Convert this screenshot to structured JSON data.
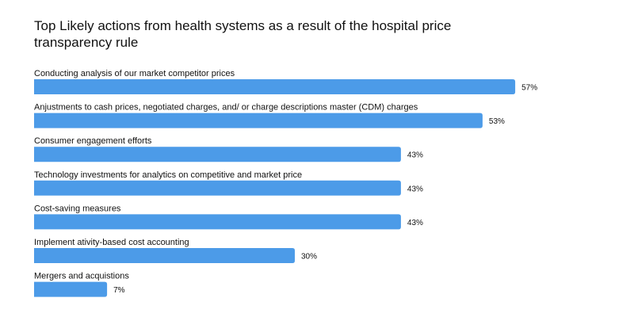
{
  "chart_data": {
    "type": "bar",
    "orientation": "horizontal",
    "title": "Top Likely actions from health systems as a result of the hospital price transparency rule",
    "categories": [
      "Conducting analysis of our market competitor prices",
      "Anjustments to cash prices, negotiated charges, and/ or charge descriptions master (CDM) charges",
      "Consumer engagement efforts",
      "Technology investments for analytics on competitive and market price",
      "Cost-saving measures",
      "Implement ativity-based cost accounting",
      "Mergers and acquistions"
    ],
    "values": [
      57,
      53,
      43,
      43,
      43,
      30,
      7
    ],
    "value_labels": [
      "57%",
      "53%",
      "43%",
      "43%",
      "43%",
      "30%",
      "7%"
    ],
    "unit": "%",
    "bar_color": "#4C9BE8",
    "grid": false,
    "legend": "none"
  }
}
